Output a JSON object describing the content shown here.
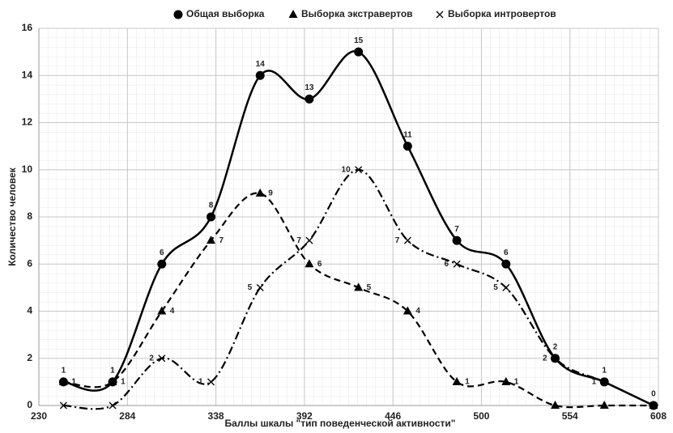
{
  "chart_data": {
    "type": "line",
    "xlabel": "Баллы шкалы \"тип поведенческой активности\"",
    "ylabel": "Количество человек",
    "x": [
      245,
      275,
      305,
      335,
      365,
      395,
      425,
      455,
      485,
      515,
      545,
      575,
      605
    ],
    "series": [
      {
        "name": "Общая выборка",
        "color": "#000000",
        "marker": "circle",
        "dash": "solid",
        "values": [
          1,
          1,
          6,
          8,
          14,
          13,
          15,
          11,
          7,
          6,
          2,
          1,
          0
        ]
      },
      {
        "name": "Выборка экстравертов",
        "color": "#000000",
        "marker": "triangle",
        "dash": "dashed",
        "values": [
          1,
          1,
          4,
          7,
          9,
          6,
          5,
          4,
          1,
          1,
          0,
          0,
          0
        ],
        "value_labels": [
          "1",
          "1",
          "4",
          "7",
          "9",
          "6",
          "5",
          "4",
          "1",
          "1",
          null,
          null,
          null
        ]
      },
      {
        "name": "Выборка интровертов",
        "color": "#000000",
        "marker": "x",
        "dash": "dashdot",
        "values": [
          0,
          0,
          2,
          1,
          5,
          7,
          10,
          7,
          6,
          5,
          2,
          1,
          0
        ],
        "value_labels": [
          null,
          null,
          "2",
          "1",
          "5",
          "7",
          "10",
          "7",
          "6",
          "5",
          "2",
          "1",
          null
        ]
      }
    ],
    "xlim": [
      230,
      608
    ],
    "xticks": [
      230,
      284,
      338,
      392,
      446,
      500,
      554,
      608
    ],
    "ylim": [
      0,
      16
    ],
    "yticks": [
      0,
      2,
      4,
      6,
      8,
      10,
      12,
      14,
      16
    ],
    "grid": true,
    "legend": "top"
  }
}
